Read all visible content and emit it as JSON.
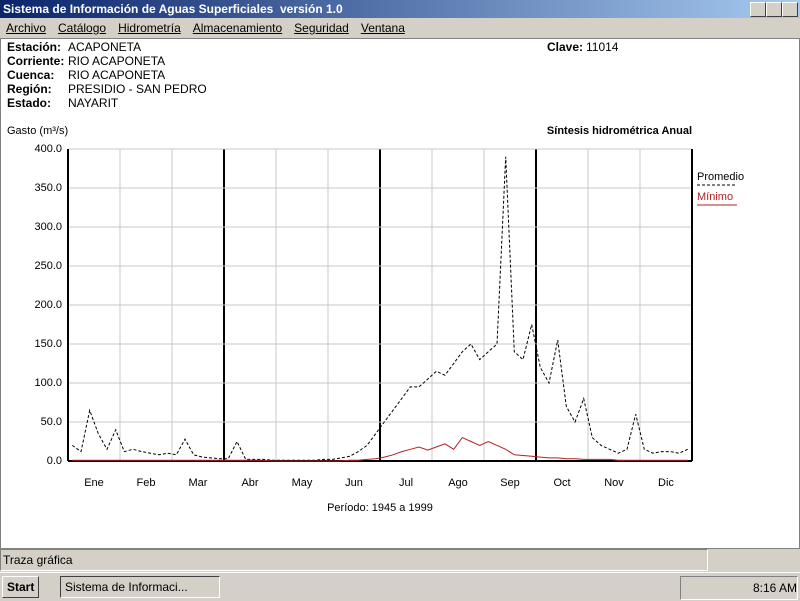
{
  "window": {
    "title": "Sistema de Información de Aguas Superficiales  versión 1.0",
    "menu": [
      "Archivo",
      "Catálogo",
      "Hidrometría",
      "Almacenamiento",
      "Seguridad",
      "Ventana"
    ]
  },
  "station": {
    "fields": [
      {
        "label": "Estación:",
        "value": "ACAPONETA"
      },
      {
        "label": "Corriente:",
        "value": "RIO ACAPONETA"
      },
      {
        "label": "Cuenca:",
        "value": "RIO ACAPONETA"
      },
      {
        "label": "Región:",
        "value": "PRESIDIO - SAN PEDRO"
      },
      {
        "label": "Estado:",
        "value": "NAYARIT"
      }
    ],
    "clave_label": "Clave:",
    "clave": "11014"
  },
  "chart_data": {
    "type": "line",
    "title": "Síntesis hidrométrica   Anual",
    "y_label": "Gasto (m³/s)",
    "x_label": "Período:  1945 a 1999",
    "categories": [
      null,
      null,
      "Ene",
      null,
      null,
      null,
      null,
      null,
      "Feb",
      null,
      null,
      null,
      null,
      null,
      "Mar",
      null,
      null,
      null,
      null,
      null,
      "Abr",
      null,
      null,
      null,
      null,
      null,
      "May",
      null,
      null,
      null,
      null,
      null,
      "Jun",
      null,
      null,
      null,
      null,
      null,
      "Jul",
      null,
      null,
      null,
      null,
      null,
      "Ago",
      null,
      null,
      null,
      null,
      null,
      "Sep",
      null,
      null,
      null,
      null,
      null,
      "Oct",
      null,
      null,
      null,
      null,
      null,
      "Nov",
      null,
      null,
      null,
      null,
      null,
      "Dic",
      null,
      null,
      null
    ],
    "series": [
      {
        "name": "Promedio",
        "color": "#000000",
        "style": "dashed",
        "values": [
          20,
          12,
          65,
          35,
          15,
          40,
          12,
          15,
          12,
          10,
          8,
          10,
          8,
          28,
          8,
          5,
          4,
          3,
          3,
          25,
          2,
          2,
          2,
          1,
          1,
          1,
          1,
          1,
          1,
          2,
          2,
          4,
          6,
          12,
          20,
          35,
          50,
          65,
          80,
          95,
          95,
          105,
          115,
          110,
          125,
          140,
          150,
          130,
          140,
          150,
          390,
          140,
          130,
          175,
          120,
          100,
          155,
          70,
          50,
          80,
          30,
          20,
          15,
          10,
          15,
          60,
          15,
          10,
          12,
          12,
          10,
          15
        ]
      },
      {
        "name": "Mínimo",
        "color": "#b22222",
        "style": "solid",
        "values": [
          1,
          1,
          1,
          1,
          1,
          1,
          1,
          1,
          1,
          1,
          1,
          1,
          1,
          1,
          1,
          1,
          1,
          1,
          1,
          1,
          1,
          1,
          1,
          0,
          0,
          0,
          0,
          0,
          0,
          0,
          0,
          0,
          1,
          1,
          2,
          3,
          5,
          8,
          12,
          15,
          18,
          14,
          18,
          22,
          15,
          30,
          25,
          20,
          25,
          20,
          15,
          8,
          7,
          6,
          5,
          4,
          4,
          3,
          3,
          2,
          2,
          2,
          2,
          1,
          1,
          1,
          1,
          1,
          1,
          1,
          1,
          1
        ]
      }
    ],
    "ylim": [
      0,
      400
    ],
    "yticks": [
      {
        "value": 0,
        "label": "0.0"
      },
      {
        "value": 50,
        "label": "50.0"
      },
      {
        "value": 100,
        "label": "100.0"
      },
      {
        "value": 150,
        "label": "150.0"
      },
      {
        "value": 200,
        "label": "200.0"
      },
      {
        "value": 250,
        "label": "250.0"
      },
      {
        "value": 300,
        "label": "300.0"
      },
      {
        "value": 350,
        "label": "350.0"
      },
      {
        "value": 400,
        "label": "400.0"
      }
    ],
    "grid": true,
    "legend": "right"
  },
  "status": {
    "text": "Traza gráfica"
  },
  "taskbar": {
    "start": "Start",
    "task": "Sistema de Informaci...",
    "clock": "8:16 AM"
  }
}
